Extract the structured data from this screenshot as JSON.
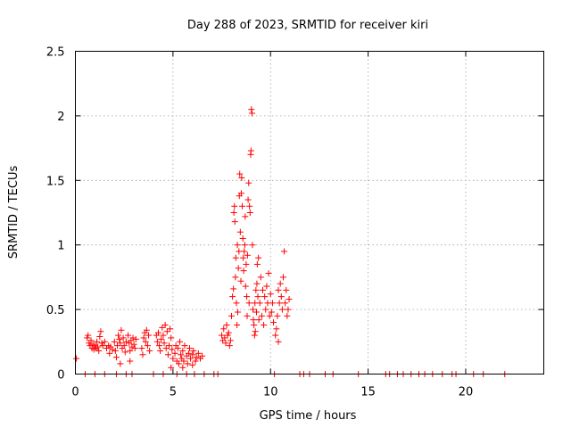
{
  "chart_data": {
    "type": "scatter",
    "title": "Day 288 of 2023, SRMTID for receiver kiri",
    "xlabel": "GPS time / hours",
    "ylabel": "SRMTID / TECUs",
    "xlim": [
      0,
      24
    ],
    "ylim": [
      0,
      2.5
    ],
    "x_ticks": [
      0,
      5,
      10,
      15,
      20
    ],
    "x_tick_labels": [
      "0",
      "5",
      "10",
      "15",
      "20"
    ],
    "y_ticks": [
      0,
      0.5,
      1,
      1.5,
      2,
      2.5
    ],
    "y_tick_labels": [
      "0",
      "0.5",
      "1",
      "1.5",
      "2",
      "2.5"
    ],
    "grid": true,
    "marker": "plus",
    "color": "#ff0000",
    "series": [
      {
        "name": "SRMTID",
        "points": [
          [
            0.05,
            0.12
          ],
          [
            0.5,
            0.0
          ],
          [
            0.6,
            0.28
          ],
          [
            0.65,
            0.3
          ],
          [
            0.7,
            0.24
          ],
          [
            0.75,
            0.22
          ],
          [
            0.8,
            0.26
          ],
          [
            0.85,
            0.2
          ],
          [
            0.9,
            0.23
          ],
          [
            0.95,
            0.19
          ],
          [
            1.0,
            0.22
          ],
          [
            1.05,
            0.2
          ],
          [
            1.1,
            0.25
          ],
          [
            1.15,
            0.21
          ],
          [
            1.2,
            0.18
          ],
          [
            1.25,
            0.29
          ],
          [
            1.3,
            0.33
          ],
          [
            1.35,
            0.24
          ],
          [
            1.4,
            0.22
          ],
          [
            1.5,
            0.25
          ],
          [
            1.6,
            0.2
          ],
          [
            1.7,
            0.22
          ],
          [
            1.75,
            0.16
          ],
          [
            1.8,
            0.21
          ],
          [
            1.9,
            0.19
          ],
          [
            2.0,
            0.25
          ],
          [
            2.05,
            0.18
          ],
          [
            2.1,
            0.13
          ],
          [
            2.15,
            0.22
          ],
          [
            2.2,
            0.3
          ],
          [
            2.25,
            0.27
          ],
          [
            2.3,
            0.24
          ],
          [
            2.35,
            0.34
          ],
          [
            2.4,
            0.2
          ],
          [
            2.45,
            0.28
          ],
          [
            2.5,
            0.22
          ],
          [
            2.55,
            0.17
          ],
          [
            2.6,
            0.25
          ],
          [
            2.7,
            0.3
          ],
          [
            2.75,
            0.24
          ],
          [
            2.8,
            0.18
          ],
          [
            2.85,
            0.26
          ],
          [
            2.9,
            0.21
          ],
          [
            2.95,
            0.28
          ],
          [
            3.0,
            0.23
          ],
          [
            3.05,
            0.2
          ],
          [
            3.1,
            0.27
          ],
          [
            1.0,
            0.0
          ],
          [
            1.5,
            0.0
          ],
          [
            2.1,
            0.0
          ],
          [
            2.6,
            0.0
          ],
          [
            2.9,
            0.0
          ],
          [
            2.3,
            0.08
          ],
          [
            2.8,
            0.1
          ],
          [
            3.5,
            0.28
          ],
          [
            3.55,
            0.32
          ],
          [
            3.6,
            0.25
          ],
          [
            3.65,
            0.34
          ],
          [
            3.7,
            0.22
          ],
          [
            3.75,
            0.3
          ],
          [
            3.8,
            0.18
          ],
          [
            3.4,
            0.2
          ],
          [
            3.45,
            0.15
          ],
          [
            4.0,
            0.0
          ],
          [
            4.15,
            0.3
          ],
          [
            4.2,
            0.25
          ],
          [
            4.25,
            0.32
          ],
          [
            4.3,
            0.22
          ],
          [
            4.35,
            0.18
          ],
          [
            4.4,
            0.27
          ],
          [
            4.45,
            0.36
          ],
          [
            4.5,
            0.3
          ],
          [
            4.55,
            0.24
          ],
          [
            4.6,
            0.38
          ],
          [
            4.65,
            0.2
          ],
          [
            4.7,
            0.33
          ],
          [
            4.75,
            0.15
          ],
          [
            4.8,
            0.22
          ],
          [
            4.85,
            0.35
          ],
          [
            4.9,
            0.28
          ],
          [
            4.95,
            0.19
          ],
          [
            4.5,
            0.0
          ],
          [
            4.9,
            0.05
          ],
          [
            5.0,
            0.12
          ],
          [
            5.1,
            0.16
          ],
          [
            5.15,
            0.22
          ],
          [
            5.2,
            0.1
          ],
          [
            5.25,
            0.2
          ],
          [
            5.3,
            0.08
          ],
          [
            5.35,
            0.25
          ],
          [
            5.4,
            0.15
          ],
          [
            5.45,
            0.12
          ],
          [
            5.5,
            0.18
          ],
          [
            5.55,
            0.1
          ],
          [
            5.6,
            0.22
          ],
          [
            5.7,
            0.14
          ],
          [
            5.75,
            0.08
          ],
          [
            5.8,
            0.16
          ],
          [
            5.85,
            0.2
          ],
          [
            5.9,
            0.12
          ],
          [
            6.0,
            0.15
          ],
          [
            6.05,
            0.18
          ],
          [
            6.15,
            0.1
          ],
          [
            6.2,
            0.13
          ],
          [
            6.3,
            0.16
          ],
          [
            6.4,
            0.12
          ],
          [
            6.5,
            0.14
          ],
          [
            5.2,
            0.0
          ],
          [
            5.7,
            0.0
          ],
          [
            6.1,
            0.0
          ],
          [
            6.6,
            0.0
          ],
          [
            5.5,
            0.05
          ],
          [
            6.0,
            0.07
          ],
          [
            7.1,
            0.0
          ],
          [
            7.3,
            0.0
          ],
          [
            7.5,
            0.3
          ],
          [
            7.55,
            0.26
          ],
          [
            7.6,
            0.35
          ],
          [
            7.65,
            0.28
          ],
          [
            7.7,
            0.24
          ],
          [
            7.75,
            0.38
          ],
          [
            7.8,
            0.3
          ],
          [
            7.85,
            0.32
          ],
          [
            7.9,
            0.22
          ],
          [
            7.95,
            0.26
          ],
          [
            8.0,
            0.45
          ],
          [
            8.05,
            0.6
          ],
          [
            8.1,
            0.66
          ],
          [
            8.12,
            1.25
          ],
          [
            8.15,
            1.3
          ],
          [
            8.17,
            1.18
          ],
          [
            8.2,
            0.75
          ],
          [
            8.22,
            0.9
          ],
          [
            8.25,
            0.55
          ],
          [
            8.28,
            0.38
          ],
          [
            8.3,
            1.0
          ],
          [
            8.32,
            0.48
          ],
          [
            8.35,
            0.82
          ],
          [
            8.38,
            0.95
          ],
          [
            8.4,
            1.38
          ],
          [
            8.42,
            1.55
          ],
          [
            8.45,
            1.1
          ],
          [
            8.48,
            0.72
          ],
          [
            8.5,
            1.4
          ],
          [
            8.52,
            1.52
          ],
          [
            8.55,
            1.3
          ],
          [
            8.58,
            1.05
          ],
          [
            8.6,
            0.9
          ],
          [
            8.62,
            0.8
          ],
          [
            8.65,
            0.95
          ],
          [
            8.68,
            1.0
          ],
          [
            8.7,
            1.22
          ],
          [
            8.72,
            0.68
          ],
          [
            8.75,
            0.85
          ],
          [
            8.78,
            0.6
          ],
          [
            8.8,
            0.45
          ],
          [
            8.82,
            0.92
          ],
          [
            8.85,
            1.35
          ],
          [
            8.88,
            1.48
          ],
          [
            8.9,
            0.55
          ],
          [
            8.92,
            1.3
          ],
          [
            8.95,
            1.25
          ],
          [
            8.98,
            1.7
          ],
          [
            9.0,
            1.73
          ],
          [
            9.02,
            2.05
          ],
          [
            9.05,
            2.02
          ],
          [
            9.07,
            1.0
          ],
          [
            9.1,
            0.5
          ],
          [
            9.12,
            0.42
          ],
          [
            9.15,
            0.38
          ],
          [
            9.18,
            0.3
          ],
          [
            9.2,
            0.55
          ],
          [
            9.22,
            0.33
          ],
          [
            9.25,
            0.65
          ],
          [
            9.28,
            0.48
          ],
          [
            9.3,
            0.7
          ],
          [
            9.32,
            0.85
          ],
          [
            9.35,
            0.6
          ],
          [
            9.38,
            0.9
          ],
          [
            9.4,
            0.42
          ],
          [
            9.45,
            0.55
          ],
          [
            9.5,
            0.75
          ],
          [
            9.55,
            0.45
          ],
          [
            9.6,
            0.65
          ],
          [
            9.65,
            0.38
          ],
          [
            9.7,
            0.6
          ],
          [
            9.75,
            0.5
          ],
          [
            9.8,
            0.68
          ],
          [
            9.85,
            0.55
          ],
          [
            9.9,
            0.78
          ],
          [
            9.95,
            0.45
          ],
          [
            10.0,
            0.62
          ],
          [
            10.05,
            0.48
          ],
          [
            10.1,
            0.55
          ],
          [
            10.15,
            0.4
          ],
          [
            10.2,
            0.0
          ],
          [
            10.3,
            0.35
          ],
          [
            10.35,
            0.45
          ],
          [
            10.4,
            0.65
          ],
          [
            10.45,
            0.55
          ],
          [
            10.5,
            0.7
          ],
          [
            10.55,
            0.6
          ],
          [
            10.6,
            0.5
          ],
          [
            10.65,
            0.75
          ],
          [
            10.7,
            0.95
          ],
          [
            10.75,
            0.55
          ],
          [
            10.8,
            0.65
          ],
          [
            10.85,
            0.45
          ],
          [
            10.9,
            0.5
          ],
          [
            10.95,
            0.58
          ],
          [
            10.25,
            0.3
          ],
          [
            10.4,
            0.25
          ],
          [
            11.5,
            0.0
          ],
          [
            11.7,
            0.0
          ],
          [
            12.0,
            0.0
          ],
          [
            12.8,
            0.0
          ],
          [
            13.2,
            0.0
          ],
          [
            14.5,
            0.0
          ],
          [
            15.9,
            0.0
          ],
          [
            16.1,
            0.0
          ],
          [
            16.5,
            0.0
          ],
          [
            16.8,
            0.0
          ],
          [
            17.2,
            0.0
          ],
          [
            17.6,
            0.0
          ],
          [
            17.9,
            0.0
          ],
          [
            18.3,
            0.0
          ],
          [
            18.8,
            0.0
          ],
          [
            19.3,
            0.0
          ],
          [
            19.5,
            0.0
          ],
          [
            20.4,
            0.0
          ],
          [
            20.9,
            0.0
          ],
          [
            22.0,
            0.0
          ]
        ]
      }
    ]
  }
}
